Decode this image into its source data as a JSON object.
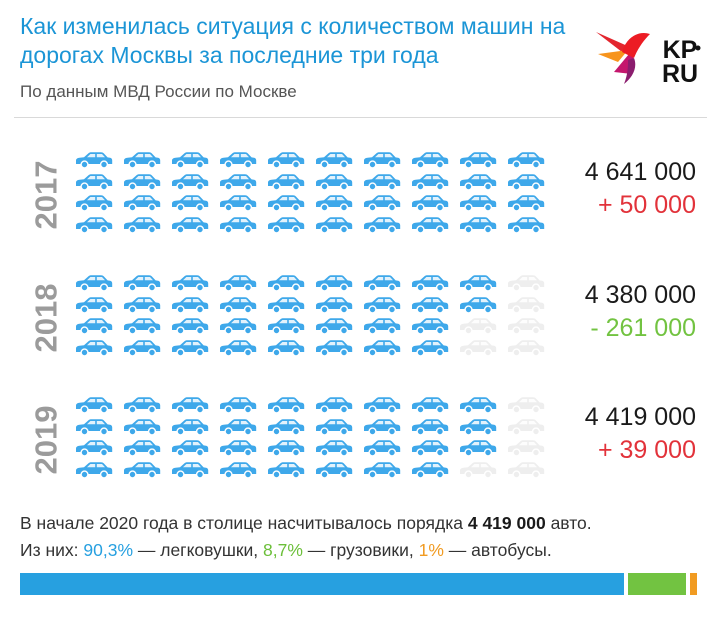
{
  "header": {
    "title": "Как изменилась ситуация с количеством машин на дорогах Москвы за последние три года",
    "subtitle": "По данным МВД России по Москве",
    "logo_text": "KP.RU"
  },
  "colors": {
    "car_active": "#3ea8ea",
    "car_inactive": "#eeeeee",
    "increase": "#e2323a",
    "decrease": "#72c341",
    "title": "#1b95d6"
  },
  "chart_data": {
    "type": "pictogram",
    "unit_icon": "car-icon",
    "icons_per_row": 10,
    "rows_per_year": 4,
    "series": [
      {
        "year": "2017",
        "total": "4 641 000",
        "change": "+ 50 000",
        "change_direction": "increase",
        "active_cars_per_row": [
          10,
          10,
          10,
          10
        ]
      },
      {
        "year": "2018",
        "total": "4 380 000",
        "change": "- 261 000",
        "change_direction": "decrease",
        "active_cars_per_row": [
          9,
          9,
          8,
          8
        ]
      },
      {
        "year": "2019",
        "total": "4 419 000",
        "change": "+ 39 000",
        "change_direction": "increase",
        "active_cars_per_row": [
          9,
          9,
          9,
          8
        ]
      }
    ],
    "vehicle_shares": [
      {
        "name": "легковушки",
        "value": 90.3,
        "label": "90,3%",
        "color": "#27a0e0"
      },
      {
        "name": "грузовики",
        "value": 8.7,
        "label": "8,7%",
        "color": "#72c341"
      },
      {
        "name": "автобусы",
        "value": 1.0,
        "label": "1%",
        "color": "#f19b22"
      }
    ]
  },
  "summary": {
    "line1_prefix": "В начале 2020 года в столице насчитывалось порядка ",
    "line1_bold": "4 419 000",
    "line1_suffix": " авто.",
    "line2_prefix": "Из них: ",
    "sep1": " — легковушки, ",
    "sep2": " — грузовики, ",
    "sep3": " — автобусы."
  }
}
